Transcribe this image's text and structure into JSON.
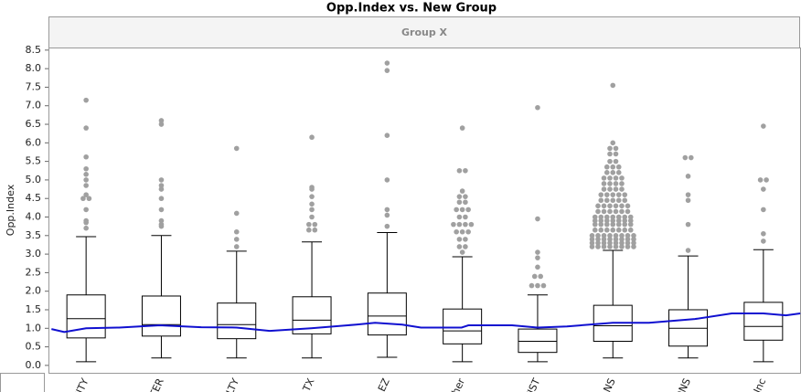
{
  "chart_data": {
    "type": "box",
    "title": "Opp.Index vs. New Group",
    "header": "Group X",
    "y_label": "Opp.Index",
    "categories": [
      "UITY",
      "NTER",
      "ULTY",
      "E TX",
      "LEZ",
      "ther",
      "VIST",
      "ANS",
      "ONS",
      "Inc"
    ],
    "ylim": [
      -0.2,
      8.57
    ],
    "yticks": [
      {
        "value": 0,
        "label": "0.0"
      },
      0.5,
      {
        "value": 1,
        "label": "1.0"
      },
      1.5,
      {
        "value": 2,
        "label": "2.0"
      },
      2.5,
      {
        "value": 3,
        "label": "3.0"
      },
      3.5,
      {
        "value": 4,
        "label": "4.0"
      },
      4.5,
      {
        "value": 5,
        "label": "5.0"
      },
      5.5,
      {
        "value": 6,
        "label": "6.0"
      },
      6.5,
      {
        "value": 7,
        "label": "7.0"
      },
      7.5,
      {
        "value": 8,
        "label": "8.0"
      },
      8.5
    ],
    "box_color": "#000000",
    "outlier_color": "#a0a0a0",
    "boxes": [
      {
        "min": 0.1,
        "q1": 0.74,
        "median": 1.26,
        "q3": 1.9,
        "max": 3.47,
        "outliers": [
          7.15,
          6.4,
          5.62,
          5.3,
          5.15,
          5.0,
          4.85,
          4.6,
          4.5,
          4.5,
          4.2,
          3.9,
          3.85,
          3.7
        ]
      },
      {
        "min": 0.2,
        "q1": 0.79,
        "median": 1.1,
        "q3": 1.87,
        "max": 3.5,
        "outliers": [
          6.6,
          6.5,
          5.0,
          4.85,
          4.75,
          4.5,
          4.2,
          3.9,
          3.8,
          3.75
        ]
      },
      {
        "min": 0.2,
        "q1": 0.72,
        "median": 1.1,
        "q3": 1.68,
        "max": 3.08,
        "outliers": [
          5.85,
          4.1,
          3.6,
          3.4,
          3.2
        ]
      },
      {
        "min": 0.2,
        "q1": 0.85,
        "median": 1.22,
        "q3": 1.85,
        "max": 3.33,
        "outliers": [
          6.15,
          4.8,
          4.75,
          4.55,
          4.35,
          4.2,
          4.0,
          3.8,
          3.8,
          3.65,
          3.65
        ]
      },
      {
        "min": 0.22,
        "q1": 0.82,
        "median": 1.33,
        "q3": 1.95,
        "max": 3.58,
        "outliers": [
          8.15,
          7.95,
          6.2,
          5.0,
          4.2,
          4.05,
          3.75
        ]
      },
      {
        "min": 0.1,
        "q1": 0.58,
        "median": 0.93,
        "q3": 1.52,
        "max": 2.93,
        "outliers": [
          6.4,
          5.25,
          5.25,
          4.7,
          4.55,
          4.55,
          4.4,
          4.4,
          4.2,
          4.2,
          4.2,
          4.0,
          4.0,
          3.8,
          3.8,
          3.8,
          3.8,
          3.6,
          3.6,
          3.6,
          3.4,
          3.4,
          3.2,
          3.2,
          3.05
        ]
      },
      {
        "min": 0.1,
        "q1": 0.35,
        "median": 0.65,
        "q3": 0.98,
        "max": 1.9,
        "outliers": [
          6.95,
          3.95,
          3.05,
          2.9,
          2.65,
          2.4,
          2.4,
          2.15,
          2.15,
          2.15
        ]
      },
      {
        "min": 0.2,
        "q1": 0.65,
        "median": 1.07,
        "q3": 1.62,
        "max": 3.1,
        "outliers": [
          7.55,
          6.0,
          5.85,
          5.85,
          5.7,
          5.7,
          5.5,
          5.5,
          5.35,
          5.35,
          5.35,
          5.2,
          5.2,
          5.2,
          5.05,
          5.05,
          5.05,
          5.05,
          4.9,
          4.9,
          4.9,
          4.9,
          4.75,
          4.75,
          4.75,
          4.75,
          4.6,
          4.6,
          4.6,
          4.6,
          4.6,
          4.45,
          4.45,
          4.45,
          4.45,
          4.45,
          4.3,
          4.3,
          4.3,
          4.3,
          4.3,
          4.3,
          4.15,
          4.15,
          4.15,
          4.15,
          4.15,
          4.15,
          4.0,
          4.0,
          4.0,
          4.0,
          4.0,
          4.0,
          4.0,
          3.9,
          3.9,
          3.9,
          3.9,
          3.9,
          3.9,
          3.9,
          3.8,
          3.8,
          3.8,
          3.8,
          3.8,
          3.8,
          3.8,
          3.65,
          3.65,
          3.65,
          3.65,
          3.65,
          3.65,
          3.65,
          3.5,
          3.5,
          3.5,
          3.5,
          3.5,
          3.5,
          3.5,
          3.5,
          3.4,
          3.4,
          3.4,
          3.4,
          3.4,
          3.4,
          3.4,
          3.4,
          3.3,
          3.3,
          3.3,
          3.3,
          3.3,
          3.3,
          3.3,
          3.3,
          3.2,
          3.2,
          3.2,
          3.2,
          3.2,
          3.2,
          3.2,
          3.2
        ]
      },
      {
        "min": 0.2,
        "q1": 0.52,
        "median": 1.0,
        "q3": 1.5,
        "max": 2.95,
        "outliers": [
          5.6,
          5.6,
          5.1,
          4.6,
          4.45,
          3.8,
          3.1
        ]
      },
      {
        "min": 0.1,
        "q1": 0.68,
        "median": 1.05,
        "q3": 1.7,
        "max": 3.12,
        "outliers": [
          6.45,
          5.0,
          5.0,
          4.75,
          4.2,
          3.55,
          3.35
        ]
      }
    ],
    "smooth": {
      "color": "#1010d0",
      "xlim": [
        -0.5,
        9.5
      ],
      "x": [
        -0.46,
        -0.29,
        0.0,
        0.44,
        0.98,
        1.53,
        2.0,
        2.44,
        2.99,
        3.59,
        3.84,
        4.2,
        4.45,
        4.99,
        5.08,
        5.66,
        6.0,
        6.39,
        7.0,
        7.48,
        8.09,
        8.58,
        9.0,
        9.3,
        9.49
      ],
      "values": [
        0.98,
        0.9,
        1.0,
        1.02,
        1.08,
        1.03,
        1.02,
        0.93,
        1.0,
        1.1,
        1.15,
        1.1,
        1.02,
        1.02,
        1.08,
        1.08,
        1.02,
        1.05,
        1.15,
        1.15,
        1.25,
        1.4,
        1.4,
        1.35,
        1.4
      ]
    }
  }
}
